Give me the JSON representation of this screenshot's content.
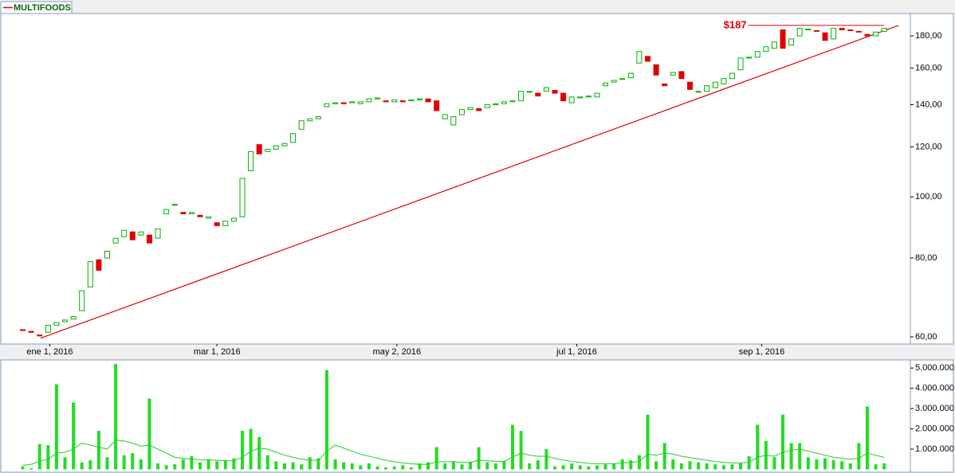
{
  "chart_data": {
    "type": "candlestick",
    "legend": "MULTIFOODS",
    "log_scale": true,
    "series": [
      {
        "name": "MULTIFOODS",
        "color": "#e00000",
        "up_color": "#00b000",
        "open": [
          61.6,
          61.2,
          60.4,
          61,
          62.6,
          63.4,
          64,
          66,
          72,
          79.5,
          80,
          84.5,
          86.5,
          88,
          87,
          87,
          86,
          94,
          97,
          94.5,
          94,
          93.5,
          92.5,
          91,
          90,
          91.5,
          93,
          110,
          121,
          118,
          119,
          120.5,
          122,
          128,
          132,
          133,
          139,
          140.5,
          141,
          141,
          140.5,
          141.5,
          143,
          142,
          141.5,
          142,
          142,
          142.5,
          143,
          142,
          133,
          130,
          135,
          137.5,
          138,
          138.5,
          140,
          140.5,
          141.5,
          142,
          146.5,
          146,
          147,
          147.5,
          146,
          141,
          143.5,
          144,
          144,
          150,
          152,
          153.5,
          154.5,
          163,
          167,
          162,
          151,
          156,
          158,
          152,
          146.5,
          147,
          149,
          151,
          154,
          159,
          166,
          166.5,
          170,
          172,
          184,
          174,
          180,
          184,
          183.5,
          182,
          178,
          185,
          184,
          183,
          181,
          180,
          183
        ],
        "close": [
          61.4,
          61,
          60.2,
          62.6,
          63.2,
          63.8,
          64.6,
          71,
          79,
          76.5,
          82,
          86,
          88.5,
          85.5,
          88,
          84.5,
          89,
          95.5,
          97.3,
          94,
          94.5,
          93,
          93,
          90,
          91.5,
          92.5,
          107,
          118,
          117,
          119,
          120.5,
          121.5,
          126,
          132,
          133,
          134,
          140.5,
          141,
          140.5,
          141.5,
          141.5,
          143,
          143.5,
          141.5,
          142.5,
          141.5,
          142.5,
          143,
          141.5,
          137,
          135,
          134,
          137.5,
          138.5,
          137,
          140,
          140.5,
          141.5,
          142,
          147,
          147,
          144.5,
          149,
          146,
          142,
          144,
          144,
          144.5,
          146,
          151.5,
          153,
          154,
          157,
          170,
          164,
          156,
          150,
          157.5,
          154,
          148,
          147,
          150,
          152,
          154,
          157,
          166,
          166.5,
          170,
          173,
          176,
          172,
          178,
          185,
          184.5,
          183,
          177,
          185,
          184,
          183.5,
          182.5,
          180,
          182.5,
          185
        ]
      }
    ],
    "xlim": [
      -2.6,
      105.1
    ],
    "xticks": [
      {
        "value": 3.2,
        "label": "ene 1, 2016"
      },
      {
        "value": 23,
        "label": "mar 1, 2016"
      },
      {
        "value": 44.3,
        "label": "may 2, 2016"
      },
      {
        "value": 65.6,
        "label": "jul 1, 2016"
      },
      {
        "value": 87.5,
        "label": "sep 1, 2016"
      }
    ],
    "ylim": [
      58.45,
      194.7
    ],
    "yticks": [
      {
        "value": 60,
        "label": "60,00"
      },
      {
        "value": 80,
        "label": "80,00"
      },
      {
        "value": 100,
        "label": "100,00"
      },
      {
        "value": 120,
        "label": "120,00"
      },
      {
        "value": 140,
        "label": "140,00"
      },
      {
        "value": 160,
        "label": "160,00"
      },
      {
        "value": 180,
        "label": "180,00"
      }
    ],
    "trendline": {
      "color": "#e00000",
      "x": [
        2.1,
        103.7
      ],
      "y": [
        59.7,
        187
      ]
    },
    "annotation": {
      "label": "$187",
      "value": 187,
      "x": [
        85.9,
        102
      ]
    },
    "volume": {
      "color": "#22dd22",
      "average_color": "#22cc22",
      "ylim": [
        0,
        5400000
      ],
      "yticks": [
        {
          "value": 1000000,
          "label": "1.000.000"
        },
        {
          "value": 2000000,
          "label": "2.000.000"
        },
        {
          "value": 3000000,
          "label": "3.000.000"
        },
        {
          "value": 4000000,
          "label": "4.000.000"
        },
        {
          "value": 5000000,
          "label": "5.000.000"
        }
      ],
      "values": [
        150000,
        60000,
        1250000,
        1200000,
        4200000,
        600000,
        3300000,
        350000,
        450000,
        1900000,
        600000,
        5200000,
        700000,
        800000,
        500000,
        3500000,
        300000,
        200000,
        250000,
        500000,
        650000,
        350000,
        500000,
        400000,
        450000,
        550000,
        1900000,
        2000000,
        1600000,
        700000,
        400000,
        300000,
        350000,
        250000,
        600000,
        550000,
        4900000,
        500000,
        350000,
        300000,
        200000,
        300000,
        150000,
        100000,
        150000,
        200000,
        100000,
        300000,
        350000,
        1100000,
        300000,
        400000,
        250000,
        350000,
        1100000,
        350000,
        300000,
        400000,
        2200000,
        1900000,
        300000,
        450000,
        1000000,
        150000,
        200000,
        300000,
        200000,
        150000,
        200000,
        250000,
        300000,
        500000,
        450000,
        700000,
        2700000,
        400000,
        1300000,
        500000,
        300000,
        400000,
        350000,
        300000,
        250000,
        200000,
        250000,
        300000,
        650000,
        2200000,
        1400000,
        600000,
        2700000,
        1300000,
        1300000,
        600000,
        500000,
        550000,
        450000,
        400000,
        300000,
        1300000,
        3100000,
        250000,
        300000
      ],
      "average": [
        200000,
        250000,
        400000,
        500000,
        800000,
        850000,
        1000000,
        1300000,
        1200000,
        1100000,
        1000000,
        1450000,
        1400000,
        1300000,
        1150000,
        1200000,
        1000000,
        800000,
        600000,
        550000,
        500000,
        480000,
        470000,
        450000,
        420000,
        420000,
        600000,
        900000,
        1050000,
        1000000,
        850000,
        700000,
        600000,
        500000,
        450000,
        450000,
        900000,
        1200000,
        1050000,
        900000,
        750000,
        650000,
        550000,
        450000,
        380000,
        320000,
        280000,
        250000,
        250000,
        380000,
        380000,
        380000,
        350000,
        350000,
        450000,
        420000,
        400000,
        400000,
        600000,
        800000,
        700000,
        650000,
        650000,
        550000,
        450000,
        400000,
        350000,
        300000,
        280000,
        280000,
        280000,
        320000,
        350000,
        400000,
        750000,
        700000,
        800000,
        750000,
        650000,
        580000,
        520000,
        450000,
        400000,
        350000,
        320000,
        320000,
        350000,
        600000,
        700000,
        650000,
        850000,
        950000,
        1000000,
        900000,
        800000,
        700000,
        600000,
        550000,
        500000,
        550000,
        800000,
        700000,
        600000
      ]
    }
  }
}
